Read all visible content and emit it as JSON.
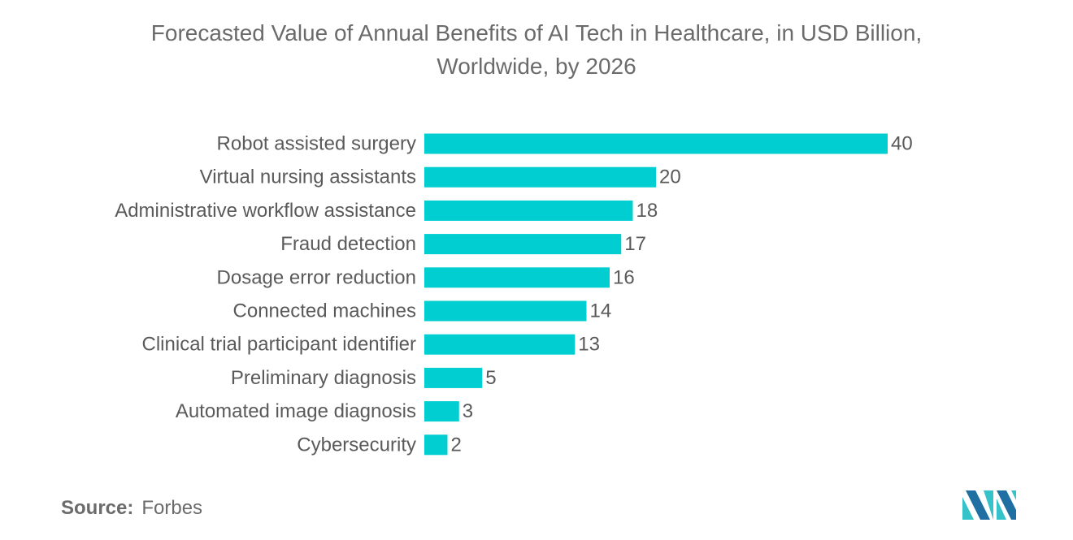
{
  "title_line1": "Forecasted Value of Annual Benefits of AI Tech in Healthcare, in USD Billion,",
  "title_line2": "Worldwide, by 2026",
  "source": {
    "label": "Source:",
    "value": "Forbes"
  },
  "colors": {
    "bar": "#00CED1",
    "label": "#5a5a5a",
    "logo_dark": "#1f6fa3",
    "logo_light": "#35c2c9"
  },
  "chart_data": {
    "type": "bar",
    "orientation": "horizontal",
    "title": "Forecasted Value of Annual Benefits of AI Tech in Healthcare, in USD Billion, Worldwide, by 2026",
    "categories": [
      "Robot assisted surgery",
      "Virtual nursing assistants",
      "Administrative workflow assistance",
      "Fraud detection",
      "Dosage error reduction",
      "Connected machines",
      "Clinical trial participant identifier",
      "Preliminary diagnosis",
      "Automated image diagnosis",
      "Cybersecurity"
    ],
    "values": [
      40,
      20,
      18,
      17,
      16,
      14,
      13,
      5,
      3,
      2
    ],
    "xlim": [
      0,
      40
    ],
    "xlabel": "",
    "ylabel": "",
    "grid": false,
    "data_labels": true
  }
}
